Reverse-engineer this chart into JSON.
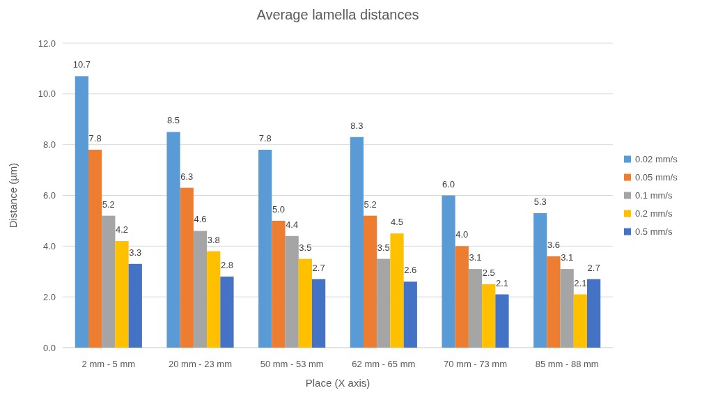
{
  "chart_data": {
    "type": "bar",
    "title": "Average lamella distances",
    "xlabel": "Place (X axis)",
    "ylabel": "Distance (µm)",
    "categories": [
      "2 mm - 5 mm",
      "20 mm - 23 mm",
      "50 mm - 53 mm",
      "62 mm - 65 mm",
      "70 mm - 73 mm",
      "85 mm - 88 mm"
    ],
    "series": [
      {
        "name": "0.02 mm/s",
        "color": "#5b9bd5",
        "values": [
          10.7,
          8.5,
          7.8,
          8.3,
          6.0,
          5.3
        ],
        "value_labels": [
          "10.7",
          "8.5",
          "7.8",
          "8.3",
          "6.0",
          "5.3"
        ]
      },
      {
        "name": "0.05 mm/s",
        "color": "#ed7d31",
        "values": [
          7.8,
          6.3,
          5.0,
          5.2,
          4.0,
          3.6
        ],
        "value_labels": [
          "7.8",
          "6.3",
          "5.0",
          "5.2",
          "4.0",
          "3.6"
        ]
      },
      {
        "name": "0.1 mm/s",
        "color": "#a5a5a5",
        "values": [
          5.2,
          4.6,
          4.4,
          3.5,
          3.1,
          3.1
        ],
        "value_labels": [
          "5.2",
          "4.6",
          "4.4",
          "3.5",
          "3.1",
          "3.1"
        ]
      },
      {
        "name": "0.2 mm/s",
        "color": "#ffc000",
        "values": [
          4.2,
          3.8,
          3.5,
          4.5,
          2.5,
          2.1
        ],
        "value_labels": [
          "4.2",
          "3.8",
          "3.5",
          "4.5",
          "2.5",
          "2.1"
        ]
      },
      {
        "name": "0.5 mm/s",
        "color": "#4472c4",
        "values": [
          3.3,
          2.8,
          2.7,
          2.6,
          2.1,
          2.7
        ],
        "value_labels": [
          "3.3",
          "2.8",
          "2.7",
          "2.6",
          "2.1",
          "2.7"
        ]
      }
    ],
    "ylim": [
      0,
      12
    ],
    "yticks": [
      {
        "value": 0,
        "label": "0.0"
      },
      {
        "value": 2,
        "label": "2.0"
      },
      {
        "value": 4,
        "label": "4.0"
      },
      {
        "value": 6,
        "label": "6.0"
      },
      {
        "value": 8,
        "label": "8.0"
      },
      {
        "value": 10,
        "label": "10.0"
      },
      {
        "value": 12,
        "label": "12.0"
      }
    ],
    "grid": "y",
    "legend": "right"
  }
}
